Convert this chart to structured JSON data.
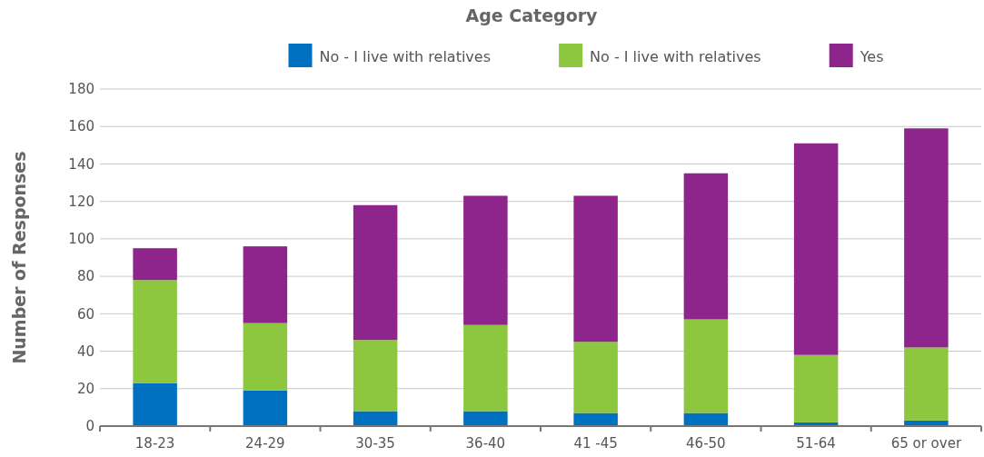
{
  "chart_data": {
    "type": "bar",
    "stacked": true,
    "legend_title": "Age Category",
    "ylabel": "Number of Responses",
    "categories": [
      "18-23",
      "24-29",
      "30-35",
      "36-40",
      "41 -45",
      "46-50",
      "51-64",
      "65 or over"
    ],
    "series": [
      {
        "name": "No - I live with relatives",
        "color": "#0070c0",
        "values": [
          23,
          19,
          8,
          8,
          7,
          7,
          2,
          3
        ]
      },
      {
        "name": "No - I live with relatives",
        "color": "#8dc63f",
        "values": [
          55,
          36,
          38,
          46,
          38,
          50,
          36,
          39
        ]
      },
      {
        "name": "Yes",
        "color": "#8e258d",
        "values": [
          17,
          41,
          72,
          69,
          78,
          78,
          113,
          117
        ]
      }
    ],
    "ylim": [
      0,
      180
    ],
    "yticks": [
      0,
      20,
      40,
      60,
      80,
      100,
      120,
      140,
      160,
      180
    ],
    "grid": "y",
    "legend": "top"
  }
}
